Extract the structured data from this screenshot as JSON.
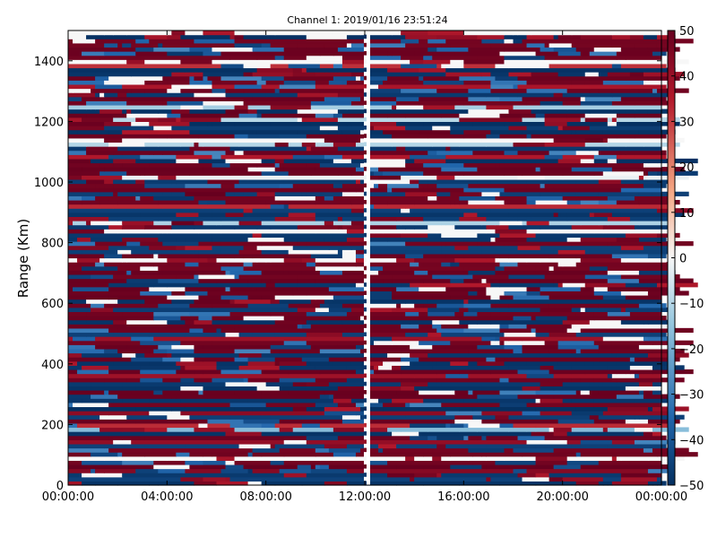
{
  "chart_data": {
    "type": "heatmap",
    "title": "Channel 1: 2019/01/16 23:51:24",
    "xlabel": "",
    "ylabel": "Range (Km)",
    "x_ticks": [
      "00:00:00",
      "04:00:00",
      "08:00:00",
      "12:00:00",
      "16:00:00",
      "20:00:00",
      "00:00:00"
    ],
    "x_tick_hours": [
      0,
      4,
      8,
      12,
      16,
      20,
      24
    ],
    "xlim_hours": [
      0,
      24
    ],
    "y_ticks": [
      "0",
      "200",
      "400",
      "600",
      "800",
      "1000",
      "1200",
      "1400"
    ],
    "y_tick_values": [
      0,
      200,
      400,
      600,
      800,
      1000,
      1200,
      1400
    ],
    "ylim": [
      0,
      1500
    ],
    "colorbar": {
      "ticks": [
        "50",
        "40",
        "30",
        "20",
        "10",
        "0",
        "−10",
        "−20",
        "−30",
        "−40",
        "−50"
      ],
      "tick_values": [
        50,
        40,
        30,
        20,
        10,
        0,
        -10,
        -20,
        -30,
        -40,
        -50
      ],
      "range": [
        -50,
        50
      ],
      "colormap": "RdBu_r",
      "colors": {
        "min": "#053061",
        "low": "#2166ac",
        "mid_low": "#92c5de",
        "mid": "#f7f7f7",
        "mid_high": "#f4a582",
        "high": "#b2182b",
        "max": "#67001f"
      }
    },
    "data_gap_hour": 12,
    "grid": false
  }
}
